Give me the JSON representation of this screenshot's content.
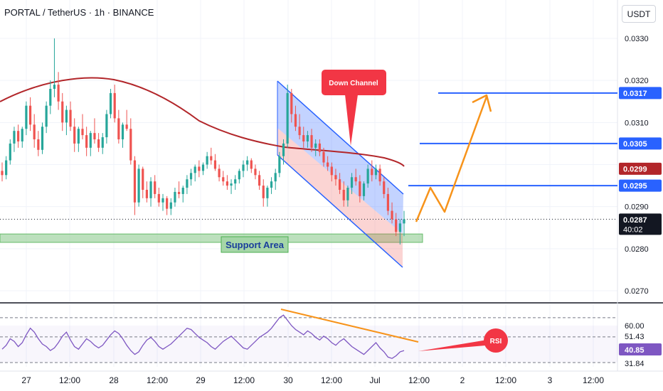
{
  "header": {
    "title": "PORTAL / TetherUS · 1h · BINANCE",
    "currency_button": "USDT"
  },
  "colors": {
    "up": "#26a69a",
    "down": "#ef5350",
    "ma": "#b2262a",
    "channel": "#2962ff",
    "projection": "#f7931a",
    "support_fill": "#a5d6a7",
    "rsi_line": "#7e57c2",
    "callout": "#f23645"
  },
  "chart_data": [
    {
      "type": "candlestick",
      "title": "PORTAL / TetherUS · 1h · BINANCE",
      "y_axis": {
        "ticks": [
          "0.0330",
          "0.0320",
          "0.0310",
          "0.0290",
          "0.0280",
          "0.0270"
        ],
        "range": [
          0.0266,
          0.0335
        ]
      },
      "x_axis": {
        "ticks": [
          "27",
          "12:00",
          "28",
          "12:00",
          "29",
          "12:00",
          "30",
          "12:00",
          "Jul",
          "12:00",
          "2",
          "12:00",
          "3",
          "12:00"
        ]
      },
      "price_labels": [
        {
          "value": "0.0317",
          "color": "#2962ff"
        },
        {
          "value": "0.0305",
          "color": "#2962ff"
        },
        {
          "value": "0.0299",
          "color": "#b2262a"
        },
        {
          "value": "0.0295",
          "color": "#2962ff"
        },
        {
          "value": "0.0287",
          "sub": "40:02",
          "color": "#131722"
        }
      ],
      "current_price": 0.0287,
      "moving_average_level": 0.0299,
      "resistance_levels": [
        0.0317,
        0.0305,
        0.0295
      ],
      "support_zone": {
        "low": 0.02815,
        "high": 0.02835,
        "label": "Support Area"
      },
      "callouts": [
        {
          "label": "Down Channel"
        }
      ],
      "candles_ohlc": [
        [
          0.02985,
          0.03005,
          0.0296,
          0.02975
        ],
        [
          0.02975,
          0.0302,
          0.02965,
          0.0301
        ],
        [
          0.0301,
          0.0306,
          0.03,
          0.0305
        ],
        [
          0.0305,
          0.0309,
          0.0303,
          0.0308
        ],
        [
          0.0308,
          0.03095,
          0.0304,
          0.03055
        ],
        [
          0.03055,
          0.0309,
          0.0304,
          0.03085
        ],
        [
          0.03085,
          0.0315,
          0.0307,
          0.0314
        ],
        [
          0.0314,
          0.0316,
          0.0308,
          0.03095
        ],
        [
          0.03095,
          0.0312,
          0.0304,
          0.0306
        ],
        [
          0.0306,
          0.0308,
          0.0302,
          0.03035
        ],
        [
          0.03035,
          0.031,
          0.03025,
          0.0309
        ],
        [
          0.0309,
          0.0315,
          0.03075,
          0.0314
        ],
        [
          0.0314,
          0.032,
          0.0312,
          0.0318
        ],
        [
          0.0318,
          0.033,
          0.0316,
          0.0319
        ],
        [
          0.0319,
          0.0322,
          0.0313,
          0.0315
        ],
        [
          0.0315,
          0.0317,
          0.0308,
          0.031
        ],
        [
          0.031,
          0.0314,
          0.0307,
          0.0313
        ],
        [
          0.0313,
          0.0315,
          0.0308,
          0.0309
        ],
        [
          0.0309,
          0.0311,
          0.0303,
          0.0305
        ],
        [
          0.0305,
          0.0309,
          0.0303,
          0.03085
        ],
        [
          0.03085,
          0.0312,
          0.0306,
          0.0307
        ],
        [
          0.0307,
          0.0309,
          0.0302,
          0.0304
        ],
        [
          0.0304,
          0.0308,
          0.0302,
          0.03075
        ],
        [
          0.03075,
          0.0311,
          0.0305,
          0.0306
        ],
        [
          0.0306,
          0.03075,
          0.0303,
          0.0304
        ],
        [
          0.0304,
          0.03075,
          0.03025,
          0.03065
        ],
        [
          0.03065,
          0.0313,
          0.0305,
          0.0312
        ],
        [
          0.0312,
          0.0318,
          0.0311,
          0.0317
        ],
        [
          0.0317,
          0.0319,
          0.031,
          0.0311
        ],
        [
          0.0311,
          0.0313,
          0.0305,
          0.0306
        ],
        [
          0.0306,
          0.031,
          0.0304,
          0.03095
        ],
        [
          0.03095,
          0.0313,
          0.0308,
          0.03085
        ],
        [
          0.03085,
          0.0311,
          0.03,
          0.0301
        ],
        [
          0.0301,
          0.0302,
          0.0288,
          0.0291
        ],
        [
          0.0291,
          0.03,
          0.029,
          0.0299
        ],
        [
          0.0299,
          0.02995,
          0.0292,
          0.0294
        ],
        [
          0.0294,
          0.0296,
          0.0291,
          0.0292
        ],
        [
          0.0292,
          0.0297,
          0.029,
          0.0296
        ],
        [
          0.0296,
          0.02975,
          0.0292,
          0.0293
        ],
        [
          0.0293,
          0.02945,
          0.029,
          0.0291
        ],
        [
          0.0291,
          0.0293,
          0.0289,
          0.0292
        ],
        [
          0.0292,
          0.02925,
          0.0288,
          0.02895
        ],
        [
          0.02895,
          0.0292,
          0.0288,
          0.0291
        ],
        [
          0.0291,
          0.02945,
          0.029,
          0.02935
        ],
        [
          0.02935,
          0.0296,
          0.0292,
          0.0293
        ],
        [
          0.0293,
          0.0295,
          0.0291,
          0.02945
        ],
        [
          0.02945,
          0.02975,
          0.0293,
          0.02965
        ],
        [
          0.02965,
          0.0299,
          0.0295,
          0.0298
        ],
        [
          0.0298,
          0.03,
          0.0296,
          0.02995
        ],
        [
          0.02995,
          0.0301,
          0.0297,
          0.02985
        ],
        [
          0.02985,
          0.03005,
          0.02975,
          0.03
        ],
        [
          0.03,
          0.0303,
          0.0299,
          0.0302
        ],
        [
          0.0302,
          0.0304,
          0.03,
          0.0301
        ],
        [
          0.0301,
          0.03025,
          0.02985,
          0.0299
        ],
        [
          0.0299,
          0.03,
          0.0296,
          0.0297
        ],
        [
          0.0297,
          0.02985,
          0.0295,
          0.0296
        ],
        [
          0.0296,
          0.02975,
          0.0294,
          0.0295
        ],
        [
          0.0295,
          0.02965,
          0.0293,
          0.02955
        ],
        [
          0.02955,
          0.02975,
          0.0294,
          0.02965
        ],
        [
          0.02965,
          0.0299,
          0.02955,
          0.02985
        ],
        [
          0.02985,
          0.0301,
          0.0297,
          0.03
        ],
        [
          0.03,
          0.0302,
          0.02985,
          0.0301
        ],
        [
          0.0301,
          0.03015,
          0.0298,
          0.0299
        ],
        [
          0.0299,
          0.03,
          0.02965,
          0.02975
        ],
        [
          0.02975,
          0.02985,
          0.0294,
          0.0295
        ],
        [
          0.0295,
          0.02965,
          0.029,
          0.0292
        ],
        [
          0.0292,
          0.0295,
          0.029,
          0.02945
        ],
        [
          0.02945,
          0.0297,
          0.0293,
          0.0296
        ],
        [
          0.0296,
          0.0299,
          0.0294,
          0.0298
        ],
        [
          0.0298,
          0.0303,
          0.0297,
          0.0302
        ],
        [
          0.0302,
          0.0306,
          0.03,
          0.0305
        ],
        [
          0.0305,
          0.0319,
          0.0304,
          0.0317
        ],
        [
          0.0317,
          0.0318,
          0.031,
          0.0312
        ],
        [
          0.0312,
          0.0314,
          0.0308,
          0.0309
        ],
        [
          0.0309,
          0.0312,
          0.0306,
          0.0307
        ],
        [
          0.0307,
          0.0309,
          0.0304,
          0.03055
        ],
        [
          0.03055,
          0.0308,
          0.0304,
          0.0307
        ],
        [
          0.0307,
          0.03085,
          0.0303,
          0.0304
        ],
        [
          0.0304,
          0.0306,
          0.0302,
          0.0305
        ],
        [
          0.0305,
          0.0306,
          0.0302,
          0.0303
        ],
        [
          0.0303,
          0.0304,
          0.02995,
          0.03005
        ],
        [
          0.03005,
          0.0302,
          0.02985,
          0.02995
        ],
        [
          0.02995,
          0.03005,
          0.0296,
          0.02975
        ],
        [
          0.02975,
          0.0299,
          0.0295,
          0.02965
        ],
        [
          0.02965,
          0.0298,
          0.0293,
          0.0294
        ],
        [
          0.0294,
          0.0296,
          0.029,
          0.02915
        ],
        [
          0.02915,
          0.0295,
          0.029,
          0.02945
        ],
        [
          0.02945,
          0.0298,
          0.0293,
          0.0297
        ],
        [
          0.0297,
          0.0299,
          0.0295,
          0.0296
        ],
        [
          0.0296,
          0.02975,
          0.0291,
          0.02925
        ],
        [
          0.02925,
          0.0296,
          0.02915,
          0.02955
        ],
        [
          0.02955,
          0.03,
          0.02945,
          0.0299
        ],
        [
          0.0299,
          0.0301,
          0.0296,
          0.02975
        ],
        [
          0.02975,
          0.03,
          0.02965,
          0.0299
        ],
        [
          0.0299,
          0.03,
          0.0295,
          0.0296
        ],
        [
          0.0296,
          0.0297,
          0.0292,
          0.0293
        ],
        [
          0.0293,
          0.02945,
          0.0288,
          0.0289
        ],
        [
          0.0289,
          0.0291,
          0.0286,
          0.0287
        ],
        [
          0.0287,
          0.02885,
          0.0283,
          0.0284
        ],
        [
          0.0284,
          0.0287,
          0.0281,
          0.0286
        ],
        [
          0.0286,
          0.0289,
          0.0283,
          0.0287
        ]
      ]
    },
    {
      "type": "line",
      "title": "RSI",
      "y_axis": {
        "ticks": [
          "60.00",
          "31.84"
        ],
        "range": [
          25,
          72
        ]
      },
      "levels": [
        60.0,
        51.43,
        31.84
      ],
      "value_labels": [
        {
          "value": "51.43"
        },
        {
          "value": "40.85",
          "highlight": true
        }
      ],
      "callout": {
        "label": "RSI"
      },
      "values": [
        42,
        45,
        50,
        48,
        44,
        47,
        53,
        58,
        55,
        50,
        46,
        44,
        41,
        43,
        47,
        52,
        55,
        49,
        44,
        42,
        46,
        50,
        48,
        45,
        43,
        45,
        49,
        53,
        56,
        54,
        50,
        45,
        41,
        38,
        40,
        45,
        49,
        51,
        48,
        44,
        42,
        44,
        46,
        49,
        52,
        55,
        58,
        57,
        54,
        51,
        49,
        47,
        44,
        42,
        45,
        48,
        50,
        52,
        49,
        46,
        43,
        42,
        45,
        48,
        51,
        53,
        55,
        58,
        62,
        66,
        68,
        64,
        60,
        57,
        55,
        53,
        56,
        54,
        51,
        49,
        52,
        50,
        47,
        45,
        48,
        50,
        47,
        44,
        42,
        40,
        38,
        41,
        44,
        47,
        43,
        40,
        36,
        35,
        37,
        40,
        41
      ]
    }
  ]
}
